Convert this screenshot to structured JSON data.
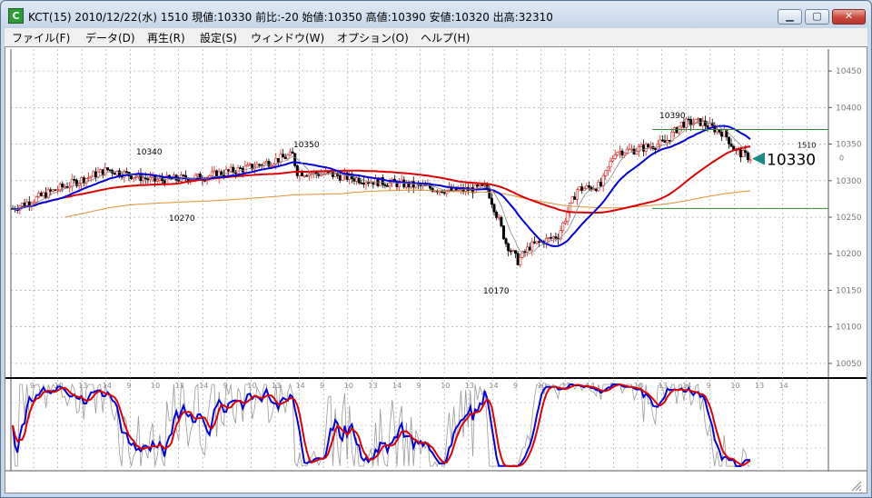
{
  "window": {
    "title": "KCT(15) 2010/12/22(水) 1510 現値:10330 前比:-20 始値:10350 高値:10390 安値:10320 出高:32310",
    "icon_letter": "C",
    "buttons": {
      "minimize": "minimize-icon",
      "maximize": "maximize-icon",
      "close": "close-icon"
    }
  },
  "menu": [
    {
      "label": "ファイル(F)"
    },
    {
      "label": "データ(D)"
    },
    {
      "label": "再生(R)"
    },
    {
      "label": "設定(S)"
    },
    {
      "label": "ウィンドウ(W)"
    },
    {
      "label": "オプション(O)"
    },
    {
      "label": "ヘルプ(H)"
    }
  ],
  "chart_data": {
    "type": "candlestick",
    "price_axis": {
      "ticks": [
        "10450",
        "10400",
        "10350",
        "10300",
        "10250",
        "10200",
        "10150",
        "10100",
        "10050"
      ],
      "ylim": [
        10030,
        10480
      ],
      "extra_ticks": [
        "1510",
        "0"
      ]
    },
    "current_price": "10330",
    "annotations": [
      "10340",
      "10350",
      "10270",
      "10390",
      "10170"
    ],
    "time_labels": [
      "9",
      "10",
      "13",
      "14",
      "9",
      "10",
      "13",
      "14",
      "9",
      "10",
      "13",
      "14",
      "9",
      "10",
      "13",
      "14",
      "9",
      "10",
      "13",
      "14",
      "9",
      "10",
      "13",
      "14",
      "9",
      "10",
      "13",
      "14",
      "9",
      "10",
      "13",
      "14"
    ],
    "horizontal_lines": [
      10370,
      10262
    ],
    "oscillator": {
      "ylim": [
        0,
        100
      ]
    },
    "colors": {
      "up": "#d62020",
      "down": "#000000",
      "ma_fast": "#0000dd",
      "ma_mid": "#dd0000",
      "ma_slow": "#e09030",
      "hline": "#2f8a2f",
      "marker": "#1a8a84",
      "grid": "#9a9a9a"
    }
  }
}
